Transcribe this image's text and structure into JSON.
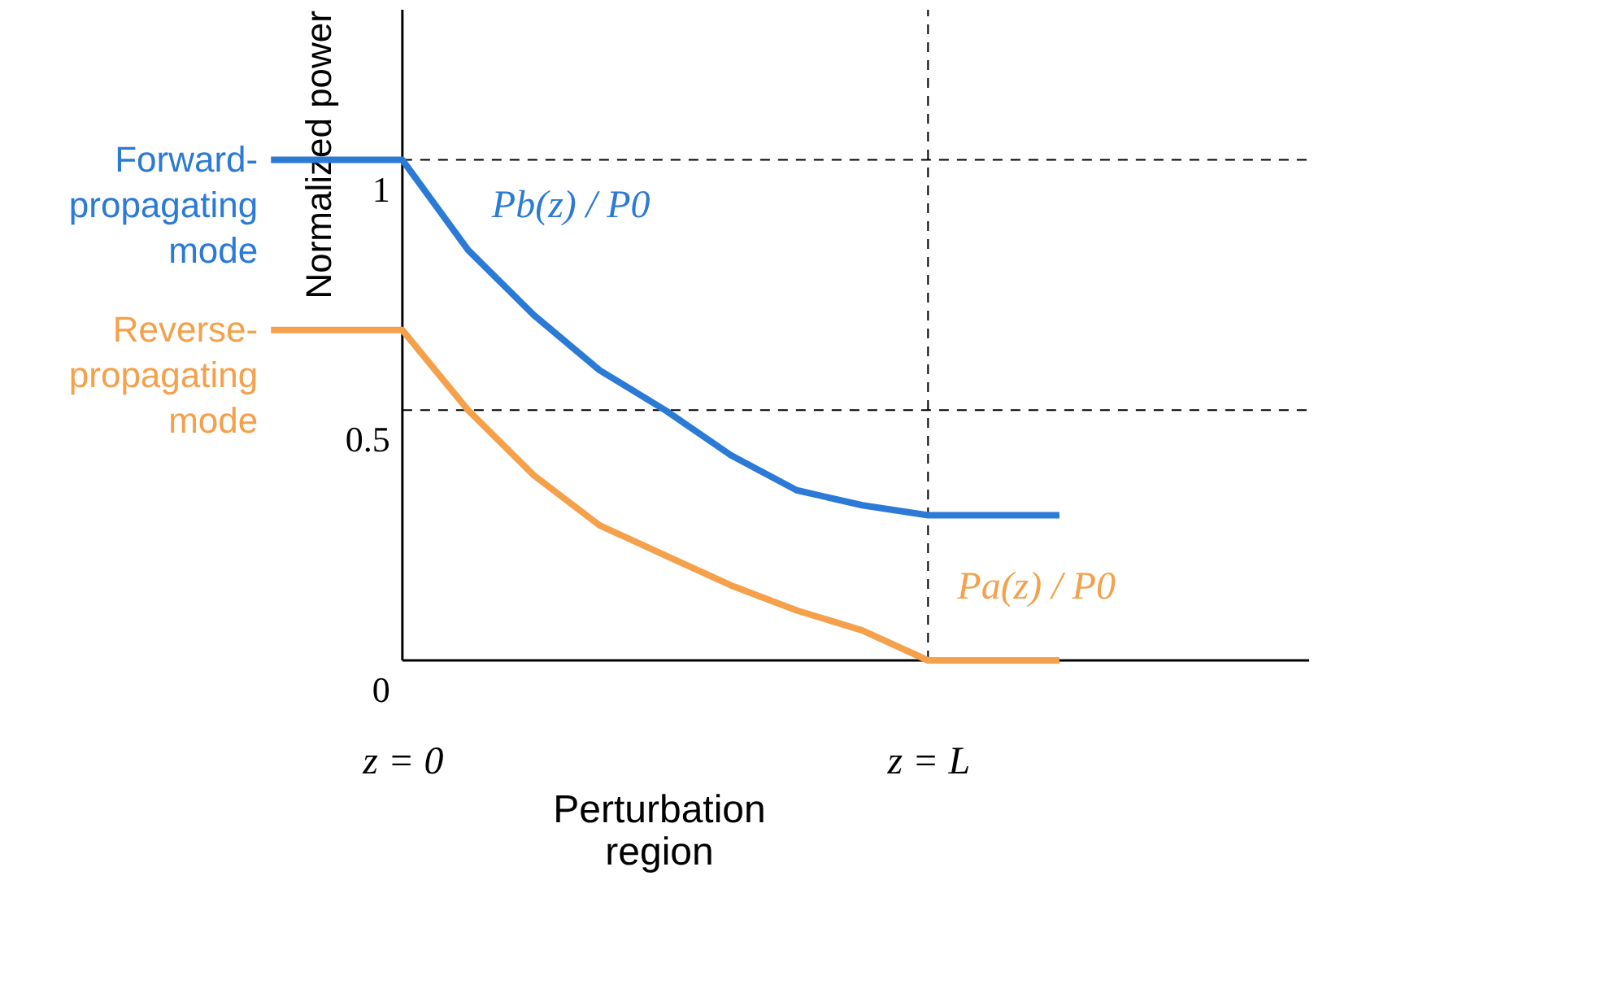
{
  "chart_data": {
    "type": "line",
    "xlabel": "Perturbation region",
    "ylabel": "Normalized power",
    "ylim": [
      0,
      1.3
    ],
    "categories": [
      null,
      null,
      "z = 0",
      null,
      null,
      null,
      null,
      null,
      null,
      null,
      "z = L",
      null,
      null
    ],
    "yticks": [
      0,
      0.5,
      1
    ],
    "series": [
      {
        "name": "Pb(z) / P0",
        "color": "#2a7ad6",
        "values": [
          1,
          1,
          1,
          0.82,
          0.69,
          0.58,
          0.5,
          0.41,
          0.34,
          0.31,
          0.29,
          0.29,
          0.29
        ]
      },
      {
        "name": "Pa(z) / P0",
        "color": "#f5a04a",
        "values": [
          0.66,
          0.66,
          0.66,
          0.5,
          0.37,
          0.27,
          0.21,
          0.15,
          0.1,
          0.06,
          0,
          0,
          0
        ]
      }
    ],
    "ref_lines": [
      {
        "axis": "y",
        "value": 1,
        "line_style": "dashed"
      },
      {
        "axis": "y",
        "value": 0.5,
        "line_style": "dashed"
      },
      {
        "axis": "x",
        "value": "z = L",
        "line_style": "dashed"
      }
    ],
    "annotations": [
      "Forward-propagating mode",
      "Reverse-propagating mode"
    ],
    "grid": false,
    "line_style": "solid",
    "marker": "none"
  }
}
